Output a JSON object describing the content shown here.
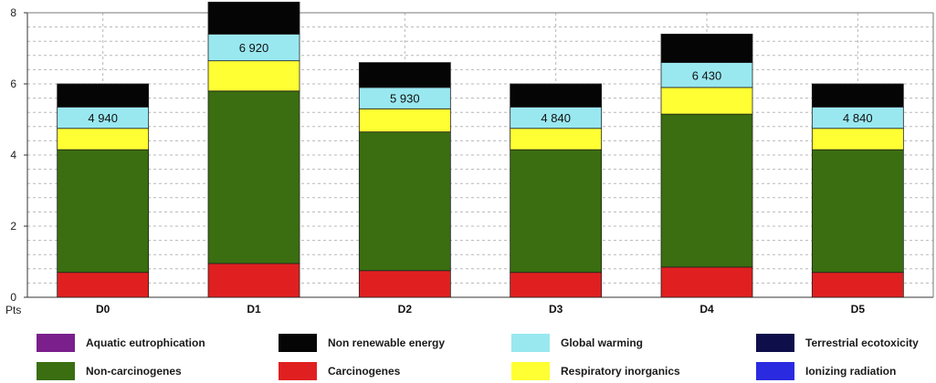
{
  "chart_data": {
    "type": "bar",
    "stacked": true,
    "categories": [
      "D0",
      "D1",
      "D2",
      "D3",
      "D4",
      "D5"
    ],
    "ylabel": "Pts",
    "ylim": [
      0,
      8
    ],
    "yticks": [
      "0",
      "2",
      "4",
      "6",
      "8"
    ],
    "grid": true,
    "legend_position": "bottom",
    "series": [
      {
        "name": "Carcinogenes",
        "color": "#e02020",
        "values": [
          0.7,
          0.95,
          0.75,
          0.7,
          0.85,
          0.7
        ]
      },
      {
        "name": "Non-carcinogenes",
        "color": "#3a6e10",
        "values": [
          3.45,
          4.85,
          3.9,
          3.45,
          4.3,
          3.45
        ]
      },
      {
        "name": "Respiratory inorganics",
        "color": "#ffff33",
        "values": [
          0.6,
          0.85,
          0.65,
          0.6,
          0.75,
          0.6
        ]
      },
      {
        "name": "Global warming",
        "color": "#99e8f0",
        "values": [
          0.6,
          0.75,
          0.6,
          0.6,
          0.7,
          0.6
        ]
      },
      {
        "name": "Non renewable energy",
        "color": "#050505",
        "values": [
          0.65,
          0.9,
          0.7,
          0.65,
          0.8,
          0.65
        ]
      },
      {
        "name": "Aquatic eutrophication",
        "color": "#7a1f8c",
        "values": [
          0,
          0,
          0,
          0,
          0,
          0
        ]
      },
      {
        "name": "Terrestrial ecotoxicity",
        "color": "#0e0e4a",
        "values": [
          0,
          0,
          0,
          0,
          0,
          0
        ]
      },
      {
        "name": "Ionizing radiation",
        "color": "#2a2ae0",
        "values": [
          0,
          0,
          0,
          0,
          0,
          0
        ]
      }
    ],
    "annotations": [
      "4 940",
      "6 920",
      "5 930",
      "4 840",
      "6 430",
      "4 840"
    ]
  },
  "legend": {
    "items": [
      {
        "label": "Aquatic eutrophication",
        "color": "#7a1f8c"
      },
      {
        "label": "Non renewable energy",
        "color": "#050505"
      },
      {
        "label": "Global warming",
        "color": "#99e8f0"
      },
      {
        "label": "Terrestrial ecotoxicity",
        "color": "#0e0e4a"
      },
      {
        "label": "Non-carcinogenes",
        "color": "#3a6e10"
      },
      {
        "label": "Carcinogenes",
        "color": "#e02020"
      },
      {
        "label": "Respiratory inorganics",
        "color": "#ffff33"
      },
      {
        "label": "Ionizing radiation",
        "color": "#2a2ae0"
      }
    ]
  }
}
